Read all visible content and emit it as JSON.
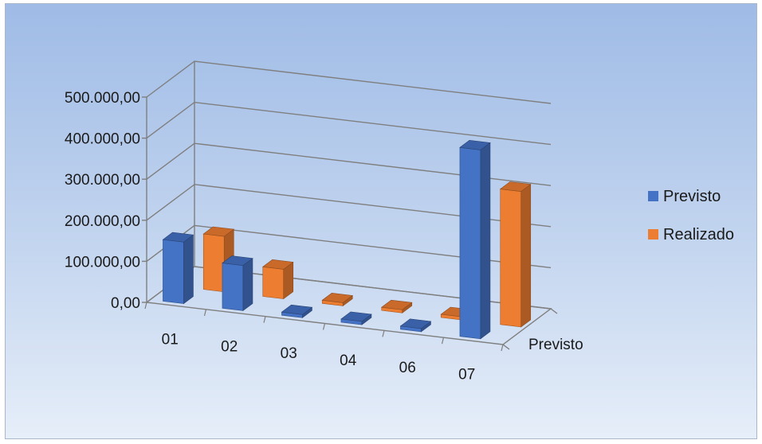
{
  "chart_data": {
    "type": "bar",
    "subtype": "3d-clustered-column",
    "categories": [
      "01",
      "02",
      "03",
      "04",
      "06",
      "07"
    ],
    "series": [
      {
        "name": "Previsto",
        "values": [
          150000,
          110000,
          0,
          8000,
          0,
          460000
        ],
        "color": "#4472c4"
      },
      {
        "name": "Realizado",
        "values": [
          135000,
          72000,
          0,
          7000,
          0,
          330000
        ],
        "color": "#ed7d31"
      }
    ],
    "yticks": [
      "0,00",
      "100.000,00",
      "200.000,00",
      "300.000,00",
      "400.000,00",
      "500.000,00"
    ],
    "ylim": [
      0,
      500000
    ],
    "depth_label": "Previsto",
    "legend": {
      "position": "right",
      "entries": [
        "Previsto",
        "Realizado"
      ]
    },
    "grid": true,
    "background_gradient": [
      "#9fbbe6",
      "#e6eef9"
    ],
    "gridline_color": "#7f7f7f"
  }
}
